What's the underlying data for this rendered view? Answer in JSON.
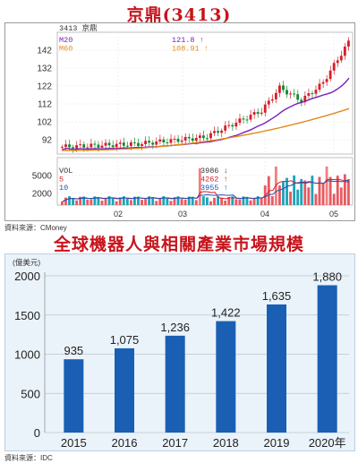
{
  "chart1": {
    "title": "京鼎(3413)",
    "header": "3413 京鼎",
    "ma_lines": [
      {
        "label": "M20",
        "value": "121.8 ↑",
        "color": "#7a1fb8"
      },
      {
        "label": "M60",
        "value": "108.91 ↑",
        "color": "#e08a1e"
      }
    ],
    "vol_lines": [
      {
        "label": "VOL",
        "value": "3986 ↓",
        "color": "#333333"
      },
      {
        "label": "5",
        "value": "4262 ↑",
        "color": "#d4202a"
      },
      {
        "label": "10",
        "value": "3955 ↑",
        "color": "#1f4fb8"
      }
    ],
    "price_ticks": [
      92,
      102,
      112,
      122,
      132,
      142
    ],
    "price_range": [
      84,
      152
    ],
    "volume_ticks": [
      2000,
      5000
    ],
    "volume_range": [
      0,
      8000
    ],
    "month_labels": [
      "02",
      "03",
      "04",
      "05"
    ],
    "source": "資料來源：CMoney"
  },
  "chart_data": {
    "type": "bar",
    "title": "全球機器人與相關產業市場規模",
    "ylabel": "(億美元)",
    "xlabel": "",
    "categories": [
      "2015",
      "2016",
      "2017",
      "2018",
      "2019",
      "2020年"
    ],
    "values": [
      935,
      1075,
      1236,
      1422,
      1635,
      1880
    ],
    "value_labels": [
      "935",
      "1,075",
      "1,236",
      "1,422",
      "1,635",
      "1,880"
    ],
    "ylim": [
      0,
      2000
    ],
    "yticks": [
      0,
      500,
      1000,
      1500,
      2000
    ],
    "grid": true,
    "bar_color": "#1a5fb4",
    "source": "資料來源：IDC"
  }
}
